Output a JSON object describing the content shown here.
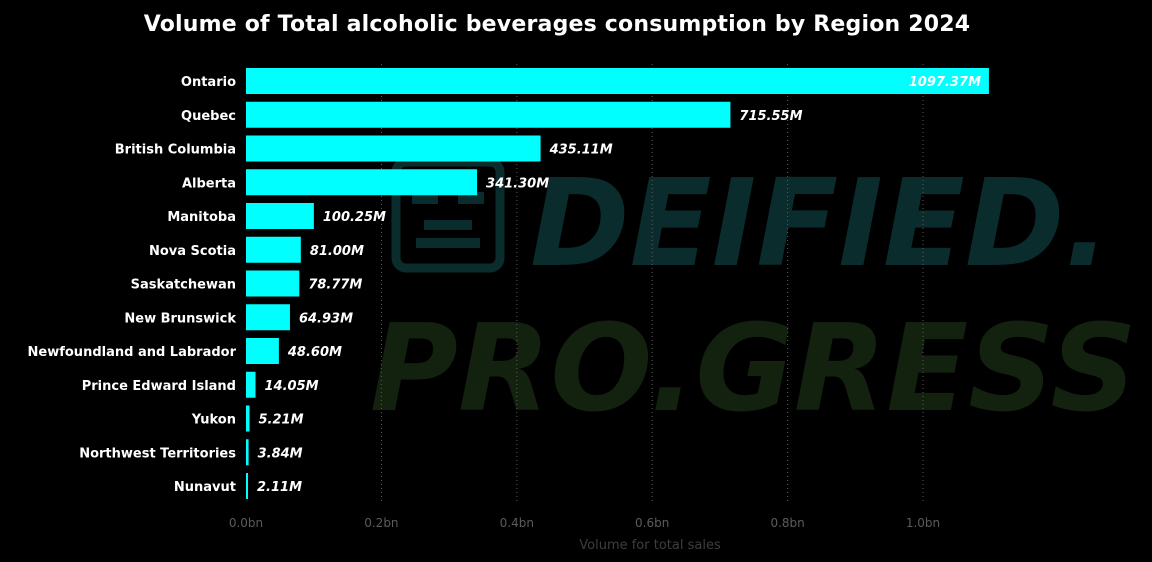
{
  "chart_data": {
    "type": "bar",
    "orientation": "horizontal",
    "title": "Volume of Total alcoholic beverages consumption by Region 2024",
    "xlabel": "Volume for total sales",
    "ylabel": "",
    "xlim": [
      0,
      1.1
    ],
    "x_unit": "bn",
    "grid": "vertical dotted",
    "categories": [
      "Ontario",
      "Quebec",
      "British Columbia",
      "Alberta",
      "Manitoba",
      "Nova Scotia",
      "Saskatchewan",
      "New Brunswick",
      "Newfoundland and Labrador",
      "Prince Edward Island",
      "Yukon",
      "Northwest Territories",
      "Nunavut"
    ],
    "values": [
      1097.37,
      715.55,
      435.11,
      341.3,
      100.25,
      81.0,
      78.77,
      64.93,
      48.6,
      14.05,
      5.21,
      3.84,
      2.11
    ],
    "value_unit": "M",
    "value_labels": [
      "1097.37M",
      "715.55M",
      "435.11M",
      "341.30M",
      "100.25M",
      "81.00M",
      "78.77M",
      "64.93M",
      "48.60M",
      "14.05M",
      "5.21M",
      "3.84M",
      "2.11M"
    ],
    "ticks": [
      0,
      0.2,
      0.4,
      0.6,
      0.8,
      1.0
    ],
    "tick_labels": [
      "0.0bn",
      "0.2bn",
      "0.4bn",
      "0.6bn",
      "0.8bn",
      "1.0bn"
    ],
    "bar_color": "#00ffff",
    "label_color": "#ffffff"
  },
  "watermark": {
    "line1": "DEIFIED.",
    "line2": "PRO.GRESS"
  }
}
